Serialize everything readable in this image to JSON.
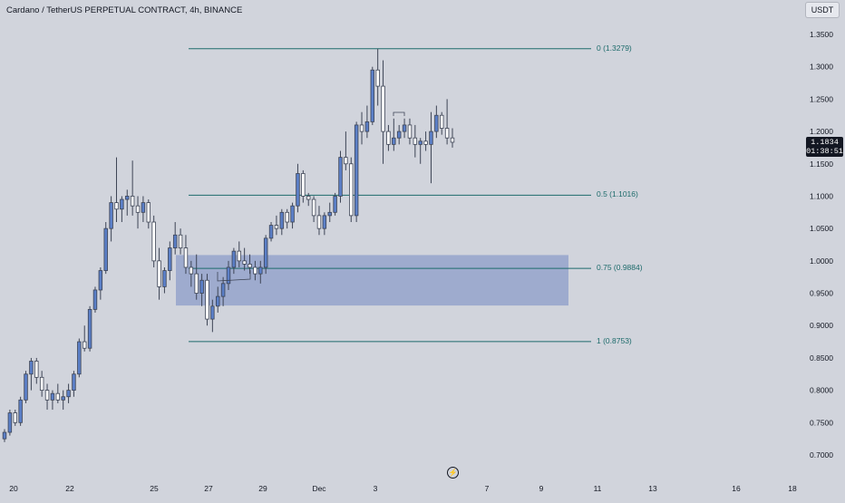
{
  "header": {
    "title": "Cardano / TetherUS PERPETUAL CONTRACT, 4h, BINANCE",
    "currency_button": "USDT"
  },
  "price_badge": {
    "price": "1.1834",
    "countdown": "01:38:51"
  },
  "icons": {
    "replay": "lightning-icon"
  },
  "colors": {
    "background": "#d1d4dc",
    "candle_up": "#5b7fc7",
    "candle_down": "#ffffff",
    "wick": "#3d4455",
    "fib_line": "#1d6b6b",
    "zone": "#7b8fc5"
  },
  "chart_data": {
    "type": "candlestick",
    "title": "Cardano / TetherUS PERPETUAL CONTRACT, 4h, BINANCE",
    "ylim": [
      0.67,
      1.375
    ],
    "y_ticks": [
      "1.3500",
      "1.3000",
      "1.2500",
      "1.2000",
      "1.1500",
      "1.1000",
      "1.0500",
      "1.0000",
      "0.9500",
      "0.9000",
      "0.8500",
      "0.8000",
      "0.7500",
      "0.7000"
    ],
    "x_ticks": [
      "20",
      "22",
      "25",
      "27",
      "29",
      "Dec",
      "3",
      "7",
      "9",
      "11",
      "13",
      "16",
      "18"
    ],
    "fib_levels": [
      {
        "label": "0 (1.3279)",
        "value": 1.3279
      },
      {
        "label": "0.5 (1.1016)",
        "value": 1.1016
      },
      {
        "label": "0.75 (0.9884)",
        "value": 0.9884
      },
      {
        "label": "1 (0.8753)",
        "value": 0.8753
      }
    ],
    "zone": {
      "top": 1.009,
      "bottom": 0.931
    },
    "last_price": 1.1834,
    "candles": [
      [
        0.725,
        0.74,
        0.72,
        0.735
      ],
      [
        0.735,
        0.77,
        0.73,
        0.765
      ],
      [
        0.765,
        0.77,
        0.745,
        0.75
      ],
      [
        0.75,
        0.79,
        0.745,
        0.785
      ],
      [
        0.785,
        0.83,
        0.78,
        0.825
      ],
      [
        0.825,
        0.85,
        0.8,
        0.845
      ],
      [
        0.845,
        0.85,
        0.81,
        0.82
      ],
      [
        0.82,
        0.83,
        0.79,
        0.8
      ],
      [
        0.8,
        0.81,
        0.77,
        0.785
      ],
      [
        0.785,
        0.8,
        0.77,
        0.795
      ],
      [
        0.795,
        0.81,
        0.78,
        0.785
      ],
      [
        0.785,
        0.8,
        0.77,
        0.79
      ],
      [
        0.79,
        0.81,
        0.78,
        0.8
      ],
      [
        0.8,
        0.83,
        0.79,
        0.825
      ],
      [
        0.825,
        0.88,
        0.82,
        0.875
      ],
      [
        0.875,
        0.9,
        0.86,
        0.865
      ],
      [
        0.865,
        0.93,
        0.86,
        0.925
      ],
      [
        0.925,
        0.96,
        0.92,
        0.955
      ],
      [
        0.955,
        0.99,
        0.94,
        0.985
      ],
      [
        0.985,
        1.06,
        0.98,
        1.05
      ],
      [
        1.05,
        1.1,
        1.03,
        1.09
      ],
      [
        1.09,
        1.16,
        1.06,
        1.08
      ],
      [
        1.08,
        1.1,
        1.06,
        1.095
      ],
      [
        1.095,
        1.11,
        1.07,
        1.1
      ],
      [
        1.1,
        1.155,
        1.07,
        1.085
      ],
      [
        1.085,
        1.1,
        1.05,
        1.075
      ],
      [
        1.075,
        1.1,
        1.06,
        1.09
      ],
      [
        1.09,
        1.095,
        1.05,
        1.06
      ],
      [
        1.06,
        1.07,
        0.99,
        1.0
      ],
      [
        1.0,
        1.02,
        0.94,
        0.96
      ],
      [
        0.96,
        0.99,
        0.95,
        0.985
      ],
      [
        0.985,
        1.03,
        0.97,
        1.02
      ],
      [
        1.02,
        1.06,
        1.01,
        1.04
      ],
      [
        1.04,
        1.05,
        1.01,
        1.02
      ],
      [
        1.02,
        1.04,
        0.98,
        0.99
      ],
      [
        0.99,
        1.0,
        0.96,
        0.98
      ],
      [
        0.98,
        1.01,
        0.94,
        0.95
      ],
      [
        0.95,
        0.98,
        0.93,
        0.97
      ],
      [
        0.97,
        0.98,
        0.9,
        0.91
      ],
      [
        0.91,
        0.94,
        0.89,
        0.93
      ],
      [
        0.93,
        0.96,
        0.92,
        0.945
      ],
      [
        0.945,
        0.975,
        0.93,
        0.965
      ],
      [
        0.965,
        1.0,
        0.955,
        0.99
      ],
      [
        0.99,
        1.02,
        0.98,
        1.015
      ],
      [
        1.015,
        1.03,
        0.99,
        1.0
      ],
      [
        1.0,
        1.02,
        0.985,
        0.995
      ],
      [
        0.995,
        1.01,
        0.98,
        0.99
      ],
      [
        0.99,
        1.0,
        0.97,
        0.98
      ],
      [
        0.98,
        1.0,
        0.965,
        0.99
      ],
      [
        0.99,
        1.04,
        0.98,
        1.035
      ],
      [
        1.035,
        1.06,
        1.03,
        1.055
      ],
      [
        1.055,
        1.07,
        1.04,
        1.05
      ],
      [
        1.05,
        1.08,
        1.04,
        1.075
      ],
      [
        1.075,
        1.08,
        1.05,
        1.06
      ],
      [
        1.06,
        1.09,
        1.05,
        1.085
      ],
      [
        1.085,
        1.15,
        1.075,
        1.135
      ],
      [
        1.135,
        1.14,
        1.09,
        1.1
      ],
      [
        1.1,
        1.105,
        1.085,
        1.095
      ],
      [
        1.095,
        1.1,
        1.06,
        1.07
      ],
      [
        1.07,
        1.085,
        1.04,
        1.05
      ],
      [
        1.05,
        1.075,
        1.04,
        1.07
      ],
      [
        1.07,
        1.09,
        1.06,
        1.075
      ],
      [
        1.075,
        1.105,
        1.07,
        1.1
      ],
      [
        1.1,
        1.17,
        1.09,
        1.16
      ],
      [
        1.16,
        1.2,
        1.14,
        1.15
      ],
      [
        1.15,
        1.16,
        1.06,
        1.07
      ],
      [
        1.07,
        1.215,
        1.06,
        1.21
      ],
      [
        1.21,
        1.23,
        1.18,
        1.2
      ],
      [
        1.2,
        1.24,
        1.19,
        1.215
      ],
      [
        1.215,
        1.3,
        1.21,
        1.295
      ],
      [
        1.295,
        1.3279,
        1.24,
        1.27
      ],
      [
        1.27,
        1.31,
        1.15,
        1.2
      ],
      [
        1.2,
        1.21,
        1.17,
        1.18
      ],
      [
        1.18,
        1.22,
        1.17,
        1.19
      ],
      [
        1.19,
        1.21,
        1.18,
        1.2
      ],
      [
        1.2,
        1.22,
        1.19,
        1.21
      ],
      [
        1.21,
        1.22,
        1.18,
        1.19
      ],
      [
        1.19,
        1.21,
        1.16,
        1.18
      ],
      [
        1.18,
        1.19,
        1.15,
        1.185
      ],
      [
        1.185,
        1.2,
        1.17,
        1.18
      ],
      [
        1.18,
        1.23,
        1.12,
        1.2
      ],
      [
        1.2,
        1.24,
        1.19,
        1.225
      ],
      [
        1.225,
        1.23,
        1.195,
        1.205
      ],
      [
        1.205,
        1.25,
        1.18,
        1.19
      ],
      [
        1.19,
        1.205,
        1.175,
        1.1834
      ]
    ],
    "candle_fields": [
      "open",
      "high",
      "low",
      "close"
    ]
  }
}
